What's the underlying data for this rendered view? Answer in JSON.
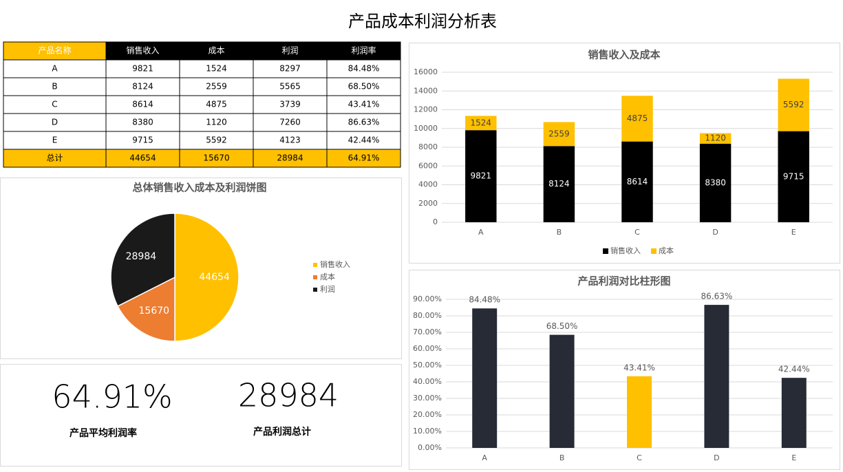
{
  "title": "产品成本利润分析表",
  "table": {
    "header": [
      "产品名称",
      "销售收入",
      "成本",
      "利润",
      "利润率"
    ],
    "rows": [
      [
        "A",
        "9821",
        "1524",
        "8297",
        "84.48%"
      ],
      [
        "B",
        "8124",
        "2559",
        "5565",
        "68.50%"
      ],
      [
        "C",
        "8614",
        "4875",
        "3739",
        "43.41%"
      ],
      [
        "D",
        "8380",
        "1120",
        "7260",
        "86.63%"
      ],
      [
        "E",
        "9715",
        "5592",
        "4123",
        "42.44%"
      ],
      [
        "总计",
        "44654",
        "15670",
        "28984",
        "64.91%"
      ]
    ]
  },
  "chart_data": [
    {
      "type": "bar",
      "stacked": true,
      "title": "销售收入及成本",
      "categories": [
        "A",
        "B",
        "C",
        "D",
        "E"
      ],
      "series": [
        {
          "name": "销售收入",
          "color": "#000000",
          "values": [
            9821,
            8124,
            8614,
            8380,
            9715
          ]
        },
        {
          "name": "成本",
          "color": "#ffc000",
          "values": [
            1524,
            2559,
            4875,
            1120,
            5592
          ]
        }
      ],
      "ylim": [
        0,
        16000
      ],
      "yticks": [
        0,
        2000,
        4000,
        6000,
        8000,
        10000,
        12000,
        14000,
        16000
      ],
      "grid": true,
      "legend": "bottom"
    },
    {
      "type": "pie",
      "title": "总体销售收入成本及利润饼图",
      "categories": [
        "销售收入",
        "成本",
        "利润"
      ],
      "values": [
        44654,
        15670,
        28984
      ],
      "colors": [
        "#ffc000",
        "#ed7d31",
        "#1a1a1a"
      ],
      "legend": "right"
    },
    {
      "type": "bar",
      "title": "产品利润对比柱形图",
      "categories": [
        "A",
        "B",
        "C",
        "D",
        "E"
      ],
      "values": [
        84.48,
        68.5,
        43.41,
        86.63,
        42.44
      ],
      "value_labels": [
        "84.48%",
        "68.50%",
        "43.41%",
        "86.63%",
        "42.44%"
      ],
      "colors": [
        "#262b36",
        "#262b36",
        "#ffc000",
        "#262b36",
        "#262b36"
      ],
      "ylim": [
        0,
        90
      ],
      "yticks": [
        {
          "value": 0,
          "label": "0.00%"
        },
        {
          "value": 10,
          "label": "10.00%"
        },
        {
          "value": 20,
          "label": "20.00%"
        },
        {
          "value": 30,
          "label": "30.00%"
        },
        {
          "value": 40,
          "label": "40.00%"
        },
        {
          "value": 50,
          "label": "50.00%"
        },
        {
          "value": 60,
          "label": "60.00%"
        },
        {
          "value": 70,
          "label": "70.00%"
        },
        {
          "value": 80,
          "label": "80.00%"
        },
        {
          "value": 90,
          "label": "90.00%"
        }
      ],
      "grid": true
    }
  ],
  "kpis": [
    {
      "value": "64.91%",
      "label": "产品平均利润率"
    },
    {
      "value": "28984",
      "label": "产品利润总计"
    }
  ]
}
